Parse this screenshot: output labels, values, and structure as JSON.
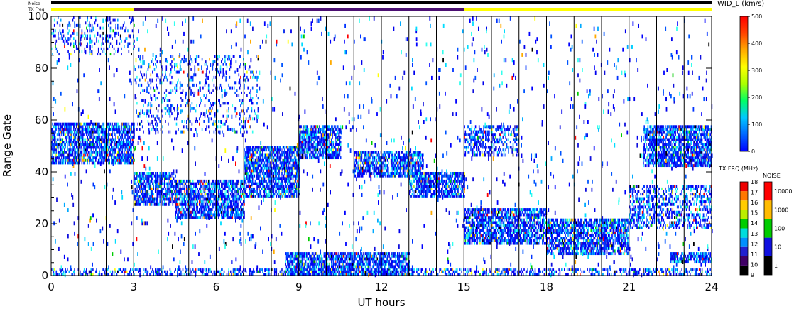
{
  "chart_data": {
    "type": "heatmap",
    "xlabel": "UT hours",
    "ylabel": "Range Gate",
    "xlim": [
      0,
      24
    ],
    "ylim": [
      0,
      100
    ],
    "x_ticks": [
      0,
      3,
      6,
      9,
      12,
      15,
      18,
      21,
      24
    ],
    "y_ticks": [
      0,
      20,
      40,
      60,
      80,
      100
    ],
    "grid_x_hours": [
      1,
      2,
      3,
      4,
      5,
      6,
      7,
      8,
      9,
      10,
      11,
      12,
      13,
      14,
      15,
      16,
      17,
      18,
      19,
      20,
      21,
      22,
      23
    ],
    "top_bars": {
      "noise_label": "Noise",
      "txfreq_label": "TX Freq",
      "noise_color": "#000000",
      "txfreq_segments": [
        {
          "start": 0,
          "end": 3,
          "color": "#ffff00"
        },
        {
          "start": 3,
          "end": 15,
          "color": "#4b0f72"
        },
        {
          "start": 15,
          "end": 24,
          "color": "#ffff00"
        }
      ]
    },
    "colorbars": [
      {
        "title": "WID_L (km/s)",
        "type": "continuous",
        "ticks": [
          "0",
          "100",
          "200",
          "300",
          "400",
          "500"
        ],
        "range": [
          0,
          500
        ],
        "colors": [
          "#0000ff",
          "#0066ff",
          "#00c8ff",
          "#00ff64",
          "#aaff00",
          "#ffff00",
          "#ffaa00",
          "#ff4400",
          "#ff0000"
        ]
      },
      {
        "title": "TX FRQ (MHz)",
        "type": "discrete",
        "ticks": [
          "9",
          "10",
          "11",
          "12",
          "13",
          "14",
          "15",
          "16",
          "17",
          "18"
        ],
        "colors": [
          "#000000",
          "#400066",
          "#2020d0",
          "#0090ff",
          "#00dddd",
          "#00cc00",
          "#bbee00",
          "#ffcc00",
          "#ff7700",
          "#ee0000"
        ]
      },
      {
        "title": "NOISE",
        "type": "discrete",
        "ticks": [
          "1",
          "10",
          "100",
          "1000",
          "10000"
        ],
        "colors": [
          "#000000",
          "#1010e0",
          "#00cc00",
          "#ffbb00",
          "#ff0000"
        ]
      }
    ],
    "echo_regions": [
      {
        "t0": 0.0,
        "t1": 3.0,
        "g0": 43,
        "g1": 59,
        "density": "high"
      },
      {
        "t0": 3.0,
        "t1": 4.5,
        "g0": 27,
        "g1": 40,
        "density": "high"
      },
      {
        "t0": 4.5,
        "t1": 7.0,
        "g0": 22,
        "g1": 37,
        "density": "high"
      },
      {
        "t0": 7.0,
        "t1": 9.0,
        "g0": 30,
        "g1": 50,
        "density": "high"
      },
      {
        "t0": 9.0,
        "t1": 10.5,
        "g0": 45,
        "g1": 58,
        "density": "high"
      },
      {
        "t0": 11.0,
        "t1": 13.5,
        "g0": 38,
        "g1": 48,
        "density": "high"
      },
      {
        "t0": 13.0,
        "t1": 15.0,
        "g0": 30,
        "g1": 40,
        "density": "high"
      },
      {
        "t0": 15.0,
        "t1": 18.0,
        "g0": 12,
        "g1": 26,
        "density": "high"
      },
      {
        "t0": 18.0,
        "t1": 21.0,
        "g0": 8,
        "g1": 22,
        "density": "high"
      },
      {
        "t0": 21.0,
        "t1": 24.0,
        "g0": 18,
        "g1": 35,
        "density": "medium"
      },
      {
        "t0": 21.5,
        "t1": 24.0,
        "g0": 42,
        "g1": 58,
        "density": "high"
      },
      {
        "t0": 15.0,
        "t1": 17.0,
        "g0": 46,
        "g1": 58,
        "density": "medium"
      },
      {
        "t0": 3.0,
        "t1": 7.5,
        "g0": 55,
        "g1": 85,
        "density": "low"
      },
      {
        "t0": 0.0,
        "t1": 3.0,
        "g0": 85,
        "g1": 100,
        "density": "low"
      },
      {
        "t0": 8.5,
        "t1": 13.0,
        "g0": 0,
        "g1": 9,
        "density": "high"
      },
      {
        "t0": 0.0,
        "t1": 24.0,
        "g0": 0,
        "g1": 3,
        "density": "medium"
      },
      {
        "t0": 22.5,
        "t1": 24.0,
        "g0": 5,
        "g1": 9,
        "density": "high"
      }
    ]
  }
}
